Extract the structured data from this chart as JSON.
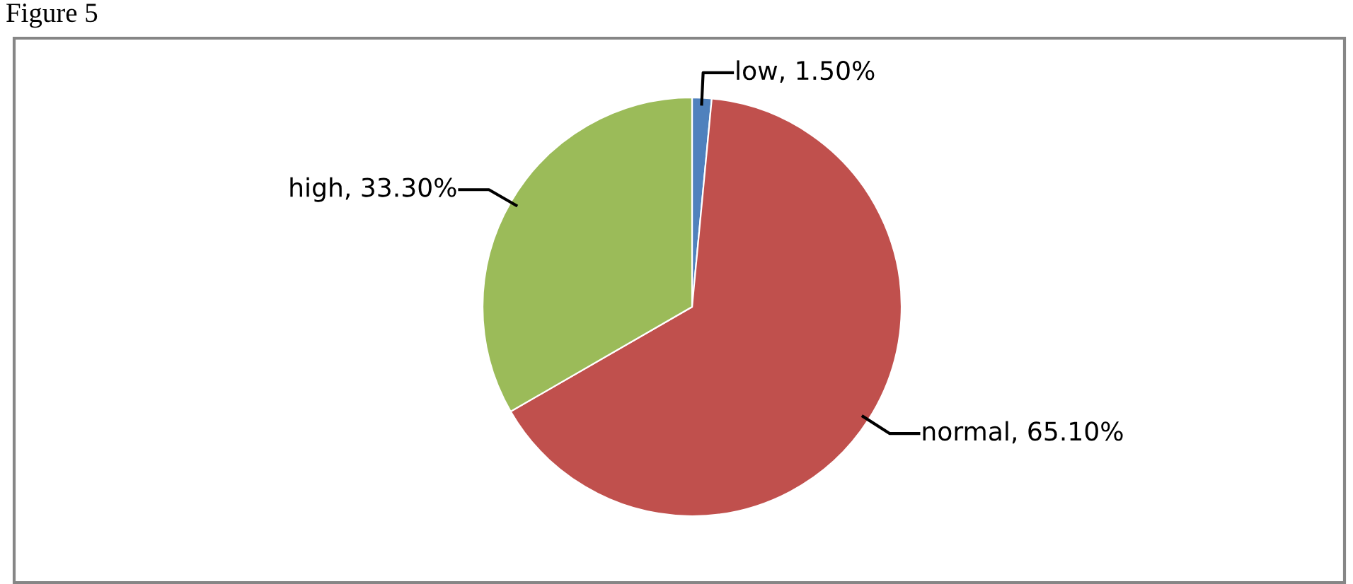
{
  "chart_data": {
    "type": "pie",
    "annotations": [
      "Figure 5"
    ],
    "categories": [
      "low",
      "normal",
      "high"
    ],
    "values": [
      1.5,
      65.1,
      33.3
    ],
    "colors": [
      "#4f81bd",
      "#c0504d",
      "#9bbb59"
    ],
    "value_labels": [
      "1.50%",
      "65.10%",
      "33.30%"
    ],
    "legend": false
  }
}
